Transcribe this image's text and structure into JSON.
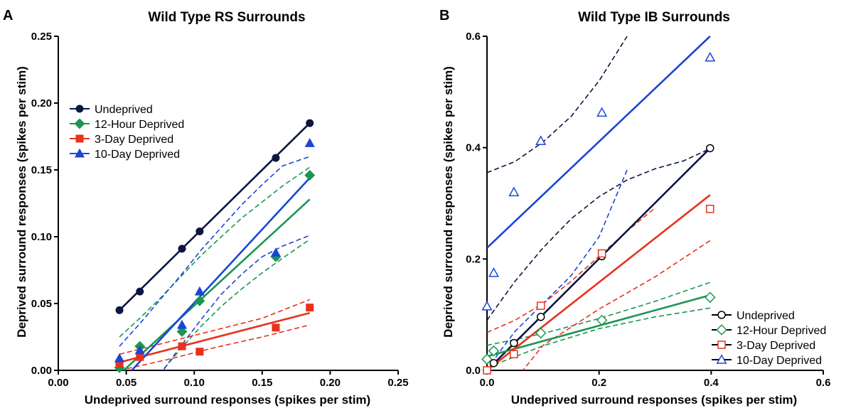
{
  "chart_data": [
    {
      "type": "scatter",
      "panel_label": "A",
      "title": "Wild Type RS Surrounds",
      "xlabel": "Undeprived surround responses (spikes per stim)",
      "ylabel": "Deprived surround responses (spikes per stim)",
      "xlim": [
        0,
        0.25
      ],
      "ylim": [
        0,
        0.25
      ],
      "xticks": [
        "0.00",
        "0.05",
        "0.10",
        "0.15",
        "0.20",
        "0.25"
      ],
      "yticks": [
        "0.00",
        "0.05",
        "0.10",
        "0.15",
        "0.20",
        "0.25"
      ],
      "legend_position": "upper-left",
      "series": [
        {
          "name": "Undeprived",
          "color": "#0c1640",
          "marker": "circle",
          "filled": true,
          "x": [
            0.045,
            0.06,
            0.091,
            0.104,
            0.16,
            0.185
          ],
          "y": [
            0.045,
            0.059,
            0.091,
            0.104,
            0.159,
            0.185
          ],
          "fit": {
            "x": [
              0.045,
              0.185
            ],
            "y": [
              0.045,
              0.185
            ]
          }
        },
        {
          "name": "12-Hour Deprived",
          "color": "#1a9650",
          "marker": "diamond",
          "filled": true,
          "x": [
            0.045,
            0.06,
            0.091,
            0.104,
            0.16,
            0.185
          ],
          "y": [
            0.002,
            0.018,
            0.029,
            0.052,
            0.085,
            0.146
          ],
          "fit": {
            "x": [
              0.045,
              0.185
            ],
            "y": [
              -0.003,
              0.128
            ]
          },
          "ci_upper": {
            "x": [
              0.045,
              0.06,
              0.075,
              0.09,
              0.105,
              0.12,
              0.135,
              0.15,
              0.165,
              0.185
            ],
            "y": [
              0.025,
              0.039,
              0.054,
              0.07,
              0.086,
              0.1,
              0.114,
              0.126,
              0.138,
              0.152
            ]
          },
          "ci_lower": {
            "x": [
              0.045,
              0.06,
              0.075,
              0.09,
              0.105,
              0.12,
              0.135,
              0.15,
              0.165,
              0.185
            ],
            "y": [
              -0.031,
              -0.017,
              -0.002,
              0.016,
              0.033,
              0.048,
              0.061,
              0.073,
              0.084,
              0.098
            ]
          }
        },
        {
          "name": "3-Day Deprived",
          "color": "#e8321c",
          "marker": "square",
          "filled": true,
          "x": [
            0.045,
            0.06,
            0.091,
            0.104,
            0.16,
            0.185
          ],
          "y": [
            0.005,
            0.01,
            0.018,
            0.014,
            0.032,
            0.047
          ],
          "fit": {
            "x": [
              0.045,
              0.185
            ],
            "y": [
              0.006,
              0.043
            ]
          },
          "ci_upper": {
            "x": [
              0.045,
              0.08,
              0.115,
              0.15,
              0.185
            ],
            "y": [
              0.012,
              0.021,
              0.03,
              0.039,
              0.053
            ]
          },
          "ci_lower": {
            "x": [
              0.045,
              0.08,
              0.115,
              0.15,
              0.185
            ],
            "y": [
              0.0,
              0.008,
              0.017,
              0.025,
              0.034
            ]
          }
        },
        {
          "name": "10-Day Deprived",
          "color": "#1a46d6",
          "marker": "triangle",
          "filled": true,
          "x": [
            0.045,
            0.06,
            0.091,
            0.104,
            0.16,
            0.185
          ],
          "y": [
            0.009,
            0.015,
            0.034,
            0.059,
            0.088,
            0.17
          ],
          "fit": {
            "x": [
              0.045,
              0.185
            ],
            "y": [
              -0.01,
              0.144
            ]
          },
          "ci_upper": {
            "x": [
              0.045,
              0.06,
              0.075,
              0.09,
              0.105,
              0.12,
              0.135,
              0.15,
              0.165,
              0.185
            ],
            "y": [
              0.018,
              0.035,
              0.053,
              0.071,
              0.09,
              0.107,
              0.124,
              0.139,
              0.153,
              0.16
            ]
          },
          "ci_lower": {
            "x": [
              0.045,
              0.06,
              0.075,
              0.09,
              0.105,
              0.12,
              0.135,
              0.15,
              0.165,
              0.185
            ],
            "y": [
              -0.04,
              -0.022,
              -0.003,
              0.018,
              0.038,
              0.057,
              0.072,
              0.085,
              0.093,
              0.101
            ]
          }
        }
      ]
    },
    {
      "type": "scatter",
      "panel_label": "B",
      "title": "Wild Type IB Surrounds",
      "xlabel": "Undeprived surround responses (spikes per stim)",
      "ylabel": "Deprived surround responses (spikes per stim)",
      "xlim": [
        0,
        0.6
      ],
      "ylim": [
        0,
        0.6
      ],
      "xticks": [
        "0.0",
        "0.2",
        "0.4",
        "0.6"
      ],
      "yticks": [
        "0.0",
        "0.2",
        "0.4",
        "0.6"
      ],
      "legend_position": "lower-right",
      "series": [
        {
          "name": "Undeprived",
          "color": "#0c1640",
          "marker": "circle",
          "filled": false,
          "x": [
            0.012,
            0.048,
            0.096,
            0.205,
            0.398
          ],
          "y": [
            0.013,
            0.049,
            0.096,
            0.205,
            0.399
          ],
          "fit": {
            "x": [
              0.0,
              0.398
            ],
            "y": [
              0.0,
              0.399
            ]
          },
          "ci_upper": {
            "x": [
              0.0,
              0.05,
              0.1,
              0.15,
              0.2,
              0.25,
              0.3,
              0.35,
              0.398
            ],
            "y": [
              0.09,
              0.16,
              0.22,
              0.272,
              0.312,
              0.342,
              0.362,
              0.376,
              0.398
            ]
          }
        },
        {
          "name": "12-Hour Deprived",
          "color": "#1a9650",
          "marker": "diamond",
          "filled": false,
          "x": [
            0.0,
            0.012,
            0.096,
            0.205,
            0.398
          ],
          "y": [
            0.02,
            0.035,
            0.067,
            0.09,
            0.131
          ],
          "fit": {
            "x": [
              0.0,
              0.398
            ],
            "y": [
              0.025,
              0.135
            ]
          },
          "ci_upper": {
            "x": [
              0.0,
              0.1,
              0.2,
              0.3,
              0.398
            ],
            "y": [
              0.045,
              0.066,
              0.093,
              0.124,
              0.158
            ]
          },
          "ci_lower": {
            "x": [
              0.0,
              0.1,
              0.2,
              0.3,
              0.398
            ],
            "y": [
              0.005,
              0.044,
              0.075,
              0.096,
              0.112
            ]
          }
        },
        {
          "name": "3-Day Deprived",
          "color": "#e8321c",
          "marker": "square",
          "filled": false,
          "x": [
            0.0,
            0.048,
            0.096,
            0.205,
            0.398
          ],
          "y": [
            0.0,
            0.029,
            0.116,
            0.21,
            0.29
          ],
          "fit": {
            "x": [
              0.0,
              0.398
            ],
            "y": [
              0.0,
              0.315
            ]
          },
          "ci_upper": {
            "x": [
              0.0,
              0.05,
              0.1,
              0.15,
              0.2,
              0.25,
              0.3
            ],
            "y": [
              0.068,
              0.09,
              0.12,
              0.16,
              0.205,
              0.25,
              0.292
            ]
          },
          "ci_lower": {
            "x": [
              0.0,
              0.1,
              0.2,
              0.3,
              0.398
            ],
            "y": [
              -0.08,
              0.045,
              0.11,
              0.168,
              0.233
            ]
          }
        },
        {
          "name": "10-Day Deprived",
          "color": "#1a46d6",
          "marker": "triangle",
          "filled": false,
          "x": [
            0.0,
            0.012,
            0.048,
            0.096,
            0.205,
            0.398
          ],
          "y": [
            0.115,
            0.175,
            0.32,
            0.412,
            0.463,
            0.562
          ],
          "fit": {
            "x": [
              0.0,
              0.398
            ],
            "y": [
              0.22,
              0.6
            ]
          }
        }
      ],
      "extra_ci": [
        {
          "color": "#0c1640",
          "x": [
            0.0,
            0.05,
            0.1,
            0.15,
            0.2,
            0.25
          ],
          "y": [
            0.355,
            0.375,
            0.41,
            0.456,
            0.52,
            0.6
          ]
        },
        {
          "color": "#1a46d6",
          "x": [
            0.0,
            0.02,
            0.05,
            0.1,
            0.15,
            0.2,
            0.25
          ],
          "y": [
            0.0,
            0.03,
            0.07,
            0.12,
            0.17,
            0.24,
            0.36
          ]
        }
      ]
    }
  ]
}
